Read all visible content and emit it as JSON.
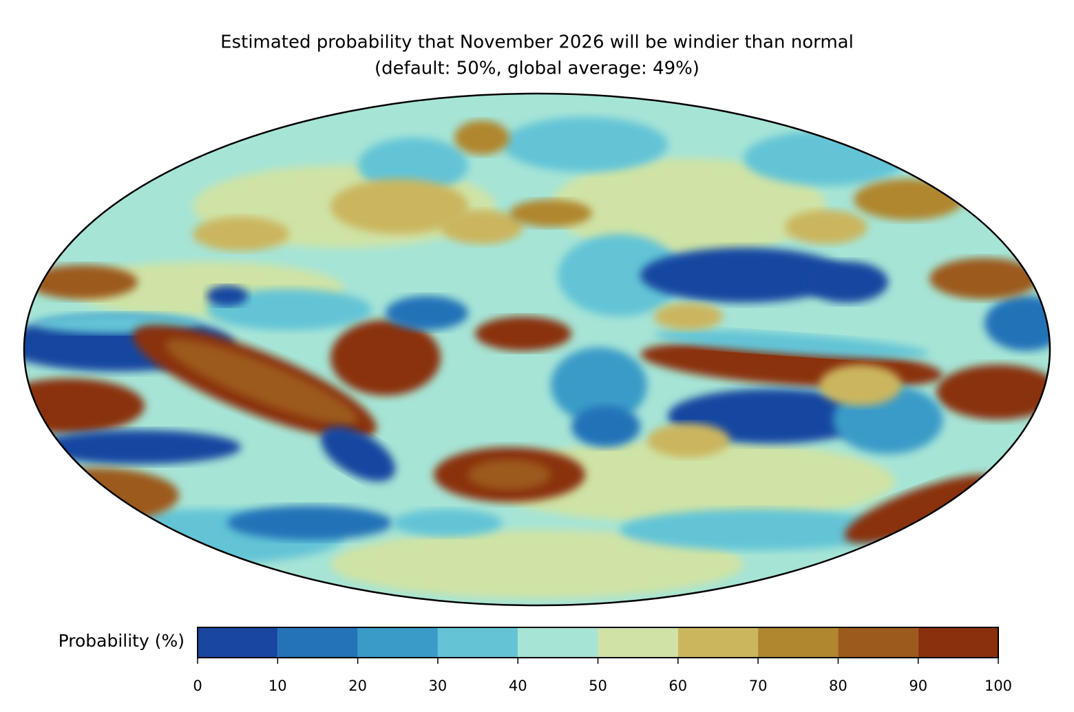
{
  "chart_data": {
    "type": "map",
    "title": "Estimated probability that November 2026 will be windier than normal",
    "subtitle": "(default: 50%, global average: 49%)",
    "colorbar": {
      "label": "Probability (%)",
      "ticks": [
        0,
        10,
        20,
        30,
        40,
        50,
        60,
        70,
        80,
        90,
        100
      ],
      "colors": [
        "#1846a0",
        "#2472b8",
        "#3a9bc8",
        "#64c4d6",
        "#a6e4d6",
        "#cfe3a6",
        "#cbb65e",
        "#b0862f",
        "#9c5a1c",
        "#8a300c"
      ]
    }
  }
}
